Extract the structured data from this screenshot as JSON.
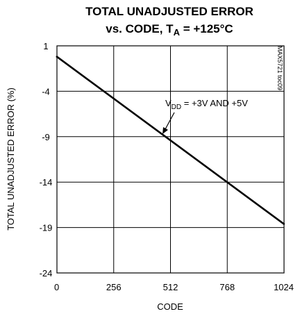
{
  "title": {
    "line1": "TOTAL UNADJUSTED ERROR",
    "line2_prefix": "vs. CODE, T",
    "line2_sub": "A",
    "line2_suffix": " = +125°C"
  },
  "side_code": "MAX5721 toc09",
  "annotation": {
    "prefix": "V",
    "sub": "DD",
    "suffix": " = +3V AND +5V"
  },
  "chart_data": {
    "type": "line",
    "xlabel": "CODE",
    "ylabel": "TOTAL UNADJUSTED ERROR (%)",
    "xlim": [
      0,
      1024
    ],
    "ylim": [
      -24,
      1
    ],
    "xticks": [
      0,
      256,
      512,
      768,
      1024
    ],
    "yticks": [
      1,
      -4,
      -9,
      -14,
      -19,
      -24
    ],
    "grid": true,
    "series": [
      {
        "x": [
          0,
          1023
        ],
        "y": [
          -0.2,
          -18.6
        ]
      }
    ]
  }
}
